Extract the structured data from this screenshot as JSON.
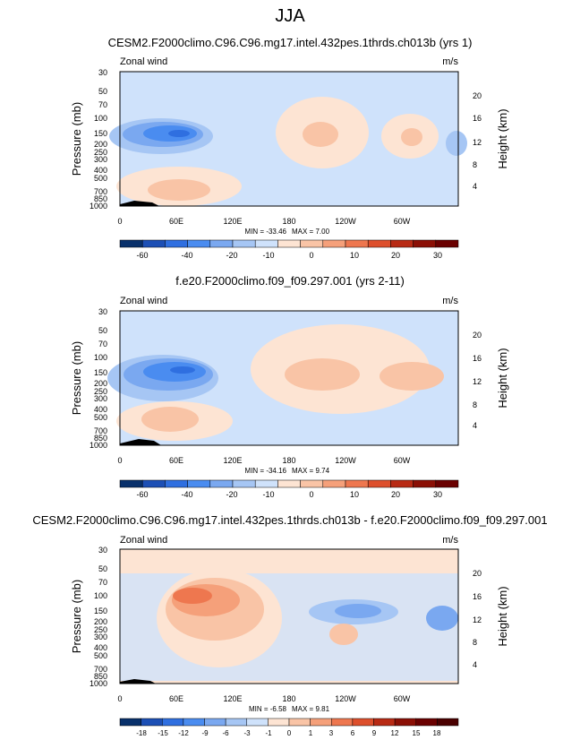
{
  "page_title": "JJA",
  "colors": {
    "label_scale_main": [
      "#08306b",
      "#1c4fb5",
      "#2f6fe0",
      "#4a8cf0",
      "#7aa8f0",
      "#a6c6f4",
      "#cfe2fb",
      "#fde4d3",
      "#f9c4a6",
      "#f5a07a",
      "#ee774f",
      "#dd4f2c",
      "#b82a14",
      "#8b0f05",
      "#6a0000"
    ],
    "label_scale_diff": [
      "#08306b",
      "#1c4fb5",
      "#2f6fe0",
      "#4a8cf0",
      "#7aa8f0",
      "#a6c6f4",
      "#cfe2fb",
      "#fde4d3",
      "#f9c4a6",
      "#f5a07a",
      "#ee774f",
      "#dd4f2c",
      "#b82a14",
      "#8b0f05",
      "#6a0000",
      "#4a0000"
    ]
  },
  "chart_data": [
    {
      "type": "heatmap",
      "title": "CESM2.F2000climo.C96.C96.mg17.intel.432pes.1thrds.ch013b (yrs 1)",
      "variable": "Zonal wind",
      "units": "m/s",
      "ylabel": "Pressure (mb)",
      "ylabel_right": "Height (km)",
      "x_ticks": [
        "0",
        "60E",
        "120E",
        "180",
        "120W",
        "60W"
      ],
      "y_ticks": [
        "30",
        "50",
        "70",
        "100",
        "150",
        "200",
        "250",
        "300",
        "400",
        "500",
        "700",
        "850",
        "1000"
      ],
      "height_ticks": [
        "20",
        "16",
        "12",
        "8",
        "4"
      ],
      "ylim": [
        1000,
        30
      ],
      "xlim": [
        0,
        360
      ],
      "min_label": "MIN = -33.46",
      "max_label": "MAX =   7.00",
      "colorbar_labels": [
        "-60",
        "-40",
        "-20",
        "-10",
        "0",
        "10",
        "20",
        "30"
      ],
      "features": [
        {
          "kind": "negative-jet",
          "lon": 50,
          "p": 150,
          "peak": -33.46
        },
        {
          "kind": "positive",
          "lon": 200,
          "p": 150,
          "peak": 7.0
        },
        {
          "kind": "positive",
          "lon": 295,
          "p": 150,
          "peak": 6
        },
        {
          "kind": "positive",
          "lon": 55,
          "p": 500,
          "peak": 5
        }
      ]
    },
    {
      "type": "heatmap",
      "title": "f.e20.F2000climo.f09_f09.297.001 (yrs 2-11)",
      "variable": "Zonal wind",
      "units": "m/s",
      "ylabel": "Pressure (mb)",
      "ylabel_right": "Height (km)",
      "x_ticks": [
        "0",
        "60E",
        "120E",
        "180",
        "120W",
        "60W"
      ],
      "y_ticks": [
        "30",
        "50",
        "70",
        "100",
        "150",
        "200",
        "250",
        "300",
        "400",
        "500",
        "700",
        "850",
        "1000"
      ],
      "height_ticks": [
        "20",
        "16",
        "12",
        "8",
        "4"
      ],
      "ylim": [
        1000,
        30
      ],
      "xlim": [
        0,
        360
      ],
      "min_label": "MIN = -34.16",
      "max_label": "MAX =   9.74",
      "colorbar_labels": [
        "-60",
        "-40",
        "-20",
        "-10",
        "0",
        "10",
        "20",
        "30"
      ],
      "features": [
        {
          "kind": "negative-jet",
          "lon": 55,
          "p": 150,
          "peak": -34.16
        },
        {
          "kind": "positive",
          "lon": 210,
          "p": 150,
          "peak": 9.74
        },
        {
          "kind": "positive",
          "lon": 300,
          "p": 150,
          "peak": 8
        },
        {
          "kind": "positive",
          "lon": 50,
          "p": 500,
          "peak": 6
        }
      ]
    },
    {
      "type": "heatmap",
      "title": "CESM2.F2000climo.C96.C96.mg17.intel.432pes.1thrds.ch013b - f.e20.F2000climo.f09_f09.297.001",
      "variable": "Zonal wind",
      "units": "m/s",
      "ylabel": "Pressure (mb)",
      "ylabel_right": "Height (km)",
      "x_ticks": [
        "0",
        "60E",
        "120E",
        "180",
        "120W",
        "60W"
      ],
      "y_ticks": [
        "30",
        "50",
        "70",
        "100",
        "150",
        "200",
        "250",
        "300",
        "400",
        "500",
        "700",
        "850",
        "1000"
      ],
      "height_ticks": [
        "20",
        "16",
        "12",
        "8",
        "4"
      ],
      "ylim": [
        1000,
        30
      ],
      "xlim": [
        0,
        360
      ],
      "min_label": "MIN =  -6.58",
      "max_label": "MAX =   9.81",
      "colorbar_labels": [
        "-18",
        "-15",
        "-12",
        "-9",
        "-6",
        "-3",
        "-1",
        "0",
        "1",
        "3",
        "6",
        "9",
        "12",
        "15",
        "18"
      ],
      "features": [
        {
          "kind": "positive-core",
          "lon": 90,
          "p": 100,
          "peak": 9.81
        },
        {
          "kind": "negative",
          "lon": 255,
          "p": 150,
          "peak": -6.58
        },
        {
          "kind": "negative",
          "lon": 345,
          "p": 200,
          "peak": -5
        },
        {
          "kind": "positive",
          "lon": 225,
          "p": 300,
          "peak": 3
        }
      ]
    }
  ]
}
